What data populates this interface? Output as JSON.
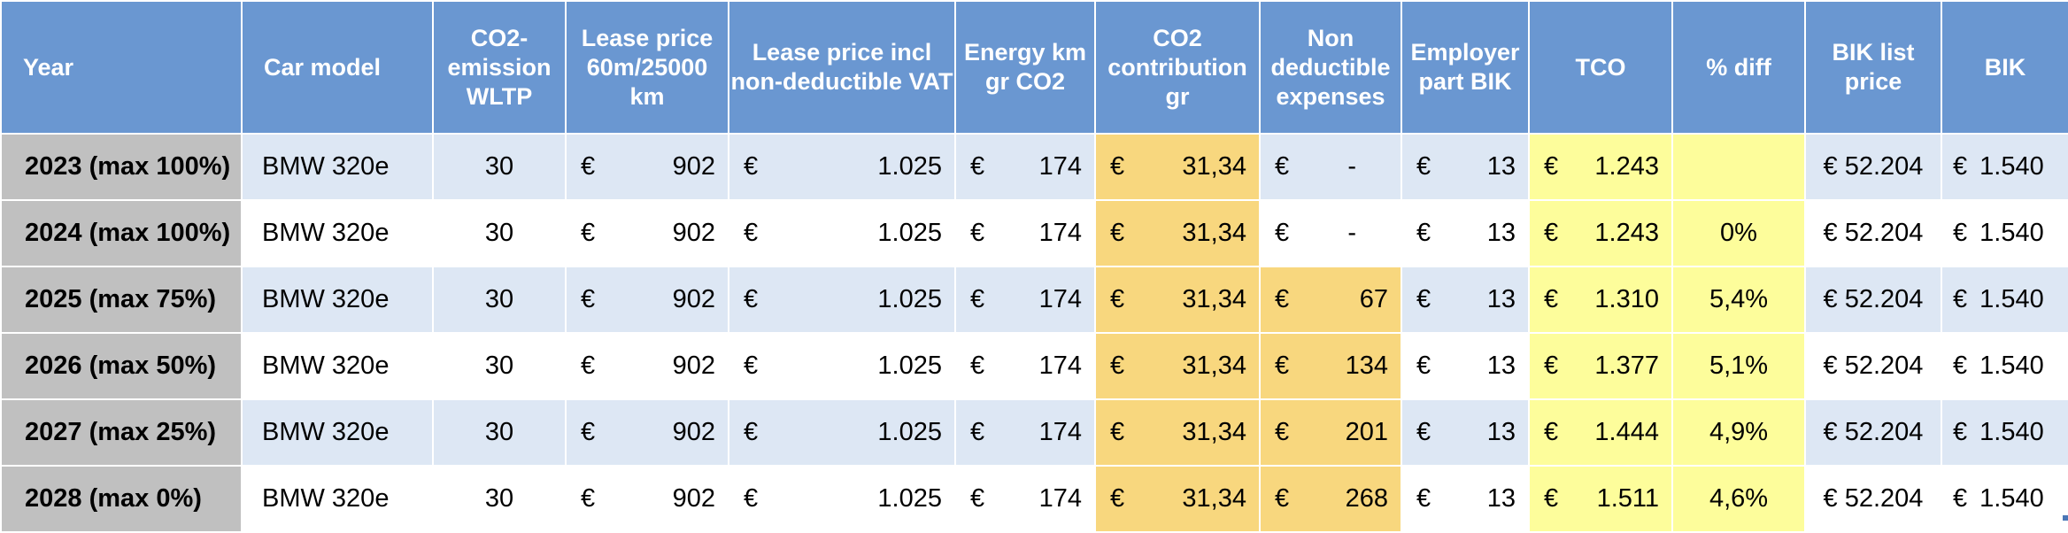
{
  "headers": {
    "year": "Year",
    "car_model": "Car model",
    "co2_emission": "CO2-emission WLTP",
    "lease_price": "Lease price 60m/25000 km",
    "lease_price_vat": "Lease price incl non-deductible VAT",
    "energy_km": "Energy km gr CO2",
    "co2_contribution": "CO2 contribution gr",
    "non_deductible": "Non deductible expenses",
    "employer_part_bik": "Employer part BIK",
    "tco": "TCO",
    "pct_diff": "% diff",
    "bik_list_price": "BIK list price",
    "bik": "BIK"
  },
  "currency_symbol": "€",
  "rows": [
    {
      "year": "2023 (max 100%)",
      "car_model": "BMW 320e",
      "co2": "30",
      "lease": "902",
      "lease_vat": "1.025",
      "energy": "174",
      "co2_contribution": "31,34",
      "non_deductible": "-",
      "employer_bik": "13",
      "tco": "1.243",
      "pct_diff": "",
      "bik_list_price": "€ 52.204",
      "bik": "1.540"
    },
    {
      "year": "2024 (max 100%)",
      "car_model": "BMW 320e",
      "co2": "30",
      "lease": "902",
      "lease_vat": "1.025",
      "energy": "174",
      "co2_contribution": "31,34",
      "non_deductible": "-",
      "employer_bik": "13",
      "tco": "1.243",
      "pct_diff": "0%",
      "bik_list_price": "€ 52.204",
      "bik": "1.540"
    },
    {
      "year": "2025 (max 75%)",
      "car_model": "BMW 320e",
      "co2": "30",
      "lease": "902",
      "lease_vat": "1.025",
      "energy": "174",
      "co2_contribution": "31,34",
      "non_deductible": "67",
      "employer_bik": "13",
      "tco": "1.310",
      "pct_diff": "5,4%",
      "bik_list_price": "€ 52.204",
      "bik": "1.540"
    },
    {
      "year": "2026 (max 50%)",
      "car_model": "BMW 320e",
      "co2": "30",
      "lease": "902",
      "lease_vat": "1.025",
      "energy": "174",
      "co2_contribution": "31,34",
      "non_deductible": "134",
      "employer_bik": "13",
      "tco": "1.377",
      "pct_diff": "5,1%",
      "bik_list_price": "€ 52.204",
      "bik": "1.540"
    },
    {
      "year": "2027 (max 25%)",
      "car_model": "BMW 320e",
      "co2": "30",
      "lease": "902",
      "lease_vat": "1.025",
      "energy": "174",
      "co2_contribution": "31,34",
      "non_deductible": "201",
      "employer_bik": "13",
      "tco": "1.444",
      "pct_diff": "4,9%",
      "bik_list_price": "€ 52.204",
      "bik": "1.540"
    },
    {
      "year": "2028 (max 0%)",
      "car_model": "BMW 320e",
      "co2": "30",
      "lease": "902",
      "lease_vat": "1.025",
      "energy": "174",
      "co2_contribution": "31,34",
      "non_deductible": "268",
      "employer_bik": "13",
      "tco": "1.511",
      "pct_diff": "4,6%",
      "bik_list_price": "€ 52.204",
      "bik": "1.540"
    }
  ],
  "colors": {
    "header_bg": "#6a97d1",
    "row_alt_bg": "#dde7f4",
    "year_col_bg": "#c0c0c0",
    "highlight_orange": "#f8d77e",
    "highlight_yellow": "#fdfd9b"
  }
}
